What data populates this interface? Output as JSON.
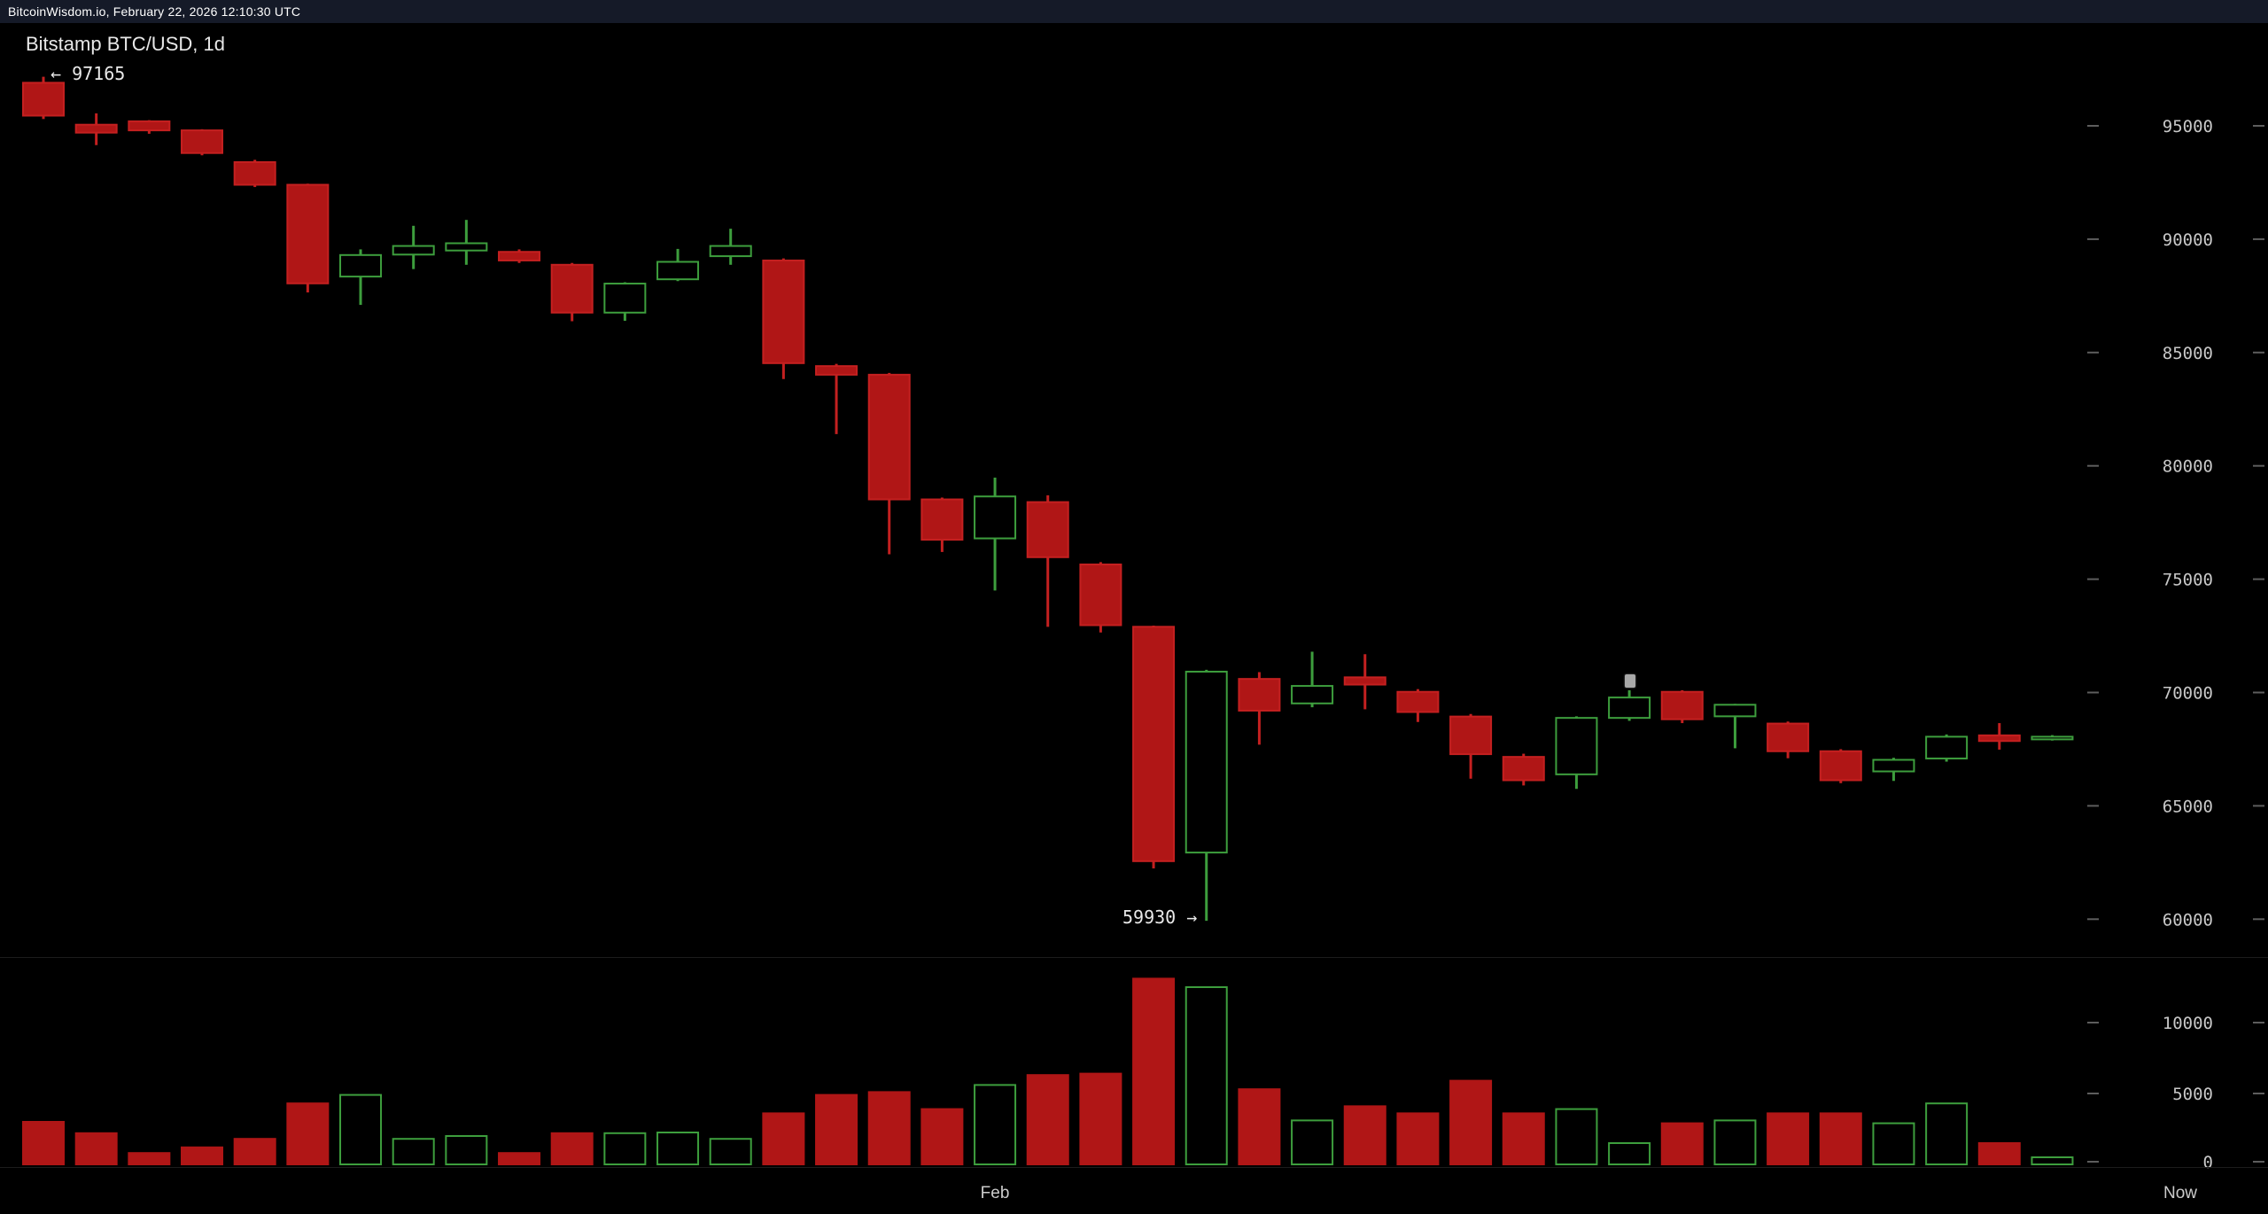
{
  "header": {
    "status_line": "BitcoinWisdom.io, February 22, 2026 12:10:30 UTC"
  },
  "chart": {
    "title": "Bitstamp BTC/USD, 1d",
    "high_label": "← 97165",
    "low_label": "59930 →",
    "feb_label": "Feb",
    "now_label": "Now"
  },
  "colors": {
    "background": "#000000",
    "topbar_bg": "#151a28",
    "up": "#3d9e3d",
    "down_fill": "#b01616",
    "down_stroke": "#c42020",
    "axis_text": "#c8c8c8",
    "tick_dash": "#5d5d5d",
    "cursor_marker": "#a8a8a8"
  },
  "chart_data": {
    "type": "candlestick",
    "title": "Bitstamp BTC/USD, 1d",
    "exchange_pair_interval": "Bitstamp BTC/USD, 1d",
    "chart_high": 97165,
    "chart_low": 59930,
    "price_ticks": [
      95000,
      90000,
      85000,
      80000,
      75000,
      70000,
      65000,
      60000
    ],
    "volume_ticks": [
      10000,
      5000,
      0
    ],
    "x_axis_labels": [
      "Feb",
      "Now"
    ],
    "feb_candle_index": 18,
    "legend_position": "none",
    "grid": false,
    "candles_format": [
      "open",
      "high",
      "low",
      "close",
      "volume"
    ],
    "candles": [
      [
        96900,
        97165,
        95300,
        95450,
        3000
      ],
      [
        95050,
        95550,
        94150,
        94700,
        2200
      ],
      [
        95200,
        95250,
        94650,
        94800,
        800
      ],
      [
        94800,
        94850,
        93700,
        93800,
        1200
      ],
      [
        93400,
        93500,
        92300,
        92400,
        1800
      ],
      [
        92400,
        92450,
        87650,
        88050,
        4300
      ],
      [
        88350,
        89550,
        87100,
        89300,
        4900
      ],
      [
        89320,
        90590,
        88680,
        89700,
        1800
      ],
      [
        89500,
        90850,
        88870,
        89820,
        2000
      ],
      [
        89440,
        89550,
        88950,
        89060,
        800
      ],
      [
        88870,
        88950,
        86380,
        86760,
        2200
      ],
      [
        86760,
        88100,
        86400,
        88040,
        2200
      ],
      [
        88230,
        89570,
        88150,
        89000,
        2250
      ],
      [
        89250,
        90460,
        88870,
        89700,
        1800
      ],
      [
        89060,
        89150,
        83830,
        84530,
        3600
      ],
      [
        84400,
        84500,
        81400,
        84020,
        4900
      ],
      [
        84020,
        84100,
        76100,
        78520,
        5100
      ],
      [
        78520,
        78600,
        76200,
        76740,
        3900
      ],
      [
        76800,
        79480,
        74500,
        78650,
        5600
      ],
      [
        78400,
        78700,
        72900,
        75970,
        6300
      ],
      [
        75650,
        75750,
        72650,
        72970,
        6400
      ],
      [
        72900,
        72950,
        62240,
        62560,
        13100
      ],
      [
        62940,
        71000,
        59930,
        70920,
        12500
      ],
      [
        70600,
        70900,
        67700,
        69200,
        5300
      ],
      [
        69520,
        71800,
        69350,
        70290,
        3100
      ],
      [
        70670,
        71690,
        69260,
        70350,
        4100
      ],
      [
        70030,
        70150,
        68700,
        69140,
        3600
      ],
      [
        68940,
        69050,
        66200,
        67280,
        5900
      ],
      [
        67160,
        67300,
        65900,
        66130,
        3600
      ],
      [
        66390,
        68950,
        65750,
        68880,
        3900
      ],
      [
        68880,
        70100,
        68750,
        69780,
        1500
      ],
      [
        70030,
        70100,
        68650,
        68820,
        2900
      ],
      [
        68950,
        69500,
        67540,
        69460,
        3100
      ],
      [
        68630,
        68720,
        67100,
        67410,
        3600
      ],
      [
        67410,
        67500,
        66000,
        66130,
        3600
      ],
      [
        66520,
        67120,
        66100,
        67030,
        2900
      ],
      [
        67090,
        68150,
        66950,
        68050,
        4300
      ],
      [
        68110,
        68650,
        67480,
        67860,
        1500
      ],
      [
        67980,
        68120,
        67880,
        68050,
        500
      ]
    ]
  }
}
